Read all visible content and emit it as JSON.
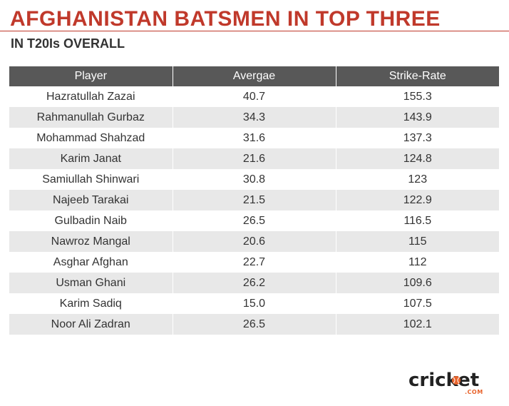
{
  "header": {
    "title": "AFGHANISTAN BATSMEN IN TOP THREE",
    "subtitle": "IN T20Is OVERALL"
  },
  "colors": {
    "title": "#c0392b",
    "header_bg": "#585858",
    "stripe": "#e8e8e8",
    "logo_accent": "#e8632b"
  },
  "chart_data": {
    "type": "table",
    "title": "AFGHANISTAN BATSMEN IN TOP THREE",
    "subtitle": "IN T20Is OVERALL",
    "columns": [
      "Player",
      "Avergae",
      "Strike-Rate"
    ],
    "rows": [
      [
        "Hazratullah Zazai",
        "40.7",
        "155.3"
      ],
      [
        "Rahmanullah Gurbaz",
        "34.3",
        "143.9"
      ],
      [
        "Mohammad Shahzad",
        "31.6",
        "137.3"
      ],
      [
        "Karim Janat",
        "21.6",
        "124.8"
      ],
      [
        "Samiullah Shinwari",
        "30.8",
        "123"
      ],
      [
        "Najeeb Tarakai",
        "21.5",
        "122.9"
      ],
      [
        "Gulbadin Naib",
        "26.5",
        "116.5"
      ],
      [
        "Nawroz Mangal",
        "20.6",
        "115"
      ],
      [
        "Asghar Afghan",
        "22.7",
        "112"
      ],
      [
        "Usman Ghani",
        "26.2",
        "109.6"
      ],
      [
        "Karim Sadiq",
        "15.0",
        "107.5"
      ],
      [
        "Noor Ali Zadran",
        "26.5",
        "102.1"
      ]
    ]
  },
  "logo": {
    "word": "cricket",
    "suffix": ".COM"
  }
}
